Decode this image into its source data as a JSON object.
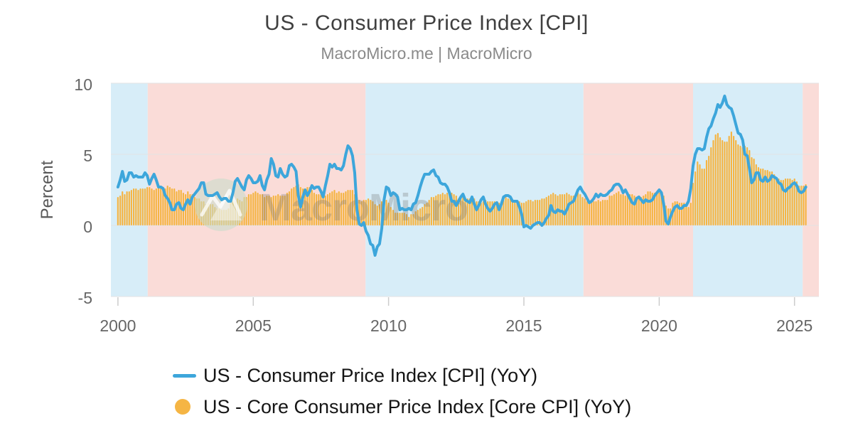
{
  "header": {
    "title": "US - Consumer Price Index [CPI]",
    "subtitle": "MacroMicro.me | MacroMicro"
  },
  "y_axis": {
    "label": "Percent",
    "ticks": [
      "10",
      "5",
      "0",
      "-5"
    ]
  },
  "x_axis": {
    "ticks": [
      "2000",
      "2005",
      "2010",
      "2015",
      "2020",
      "2025"
    ]
  },
  "watermark": {
    "text": "MacroMicro",
    "logo": "macromicro-mountain-logo"
  },
  "colors": {
    "line": "#3da6db",
    "bar": "#f5b544",
    "band_blue": "#d7edf8",
    "band_pink": "#fadcd8",
    "grid": "#e3e3e3",
    "tick": "#cccccc",
    "title": "#3f3f3f",
    "subtitle": "#8a8a8a",
    "axis_text": "#666666",
    "legend_text": "#151515",
    "watermark_gray": "#777777"
  },
  "legend": {
    "items": [
      {
        "label": "US - Consumer Price Index [CPI] (YoY)",
        "marker": "line",
        "color": "#3da6db"
      },
      {
        "label": "US - Core Consumer Price Index [Core CPI] (YoY)",
        "marker": "circle",
        "color": "#f5b544"
      }
    ]
  },
  "chart_data": {
    "type": "line+bar",
    "title": "US - Consumer Price Index [CPI]",
    "subtitle": "MacroMicro.me | MacroMicro",
    "ylabel": "Percent",
    "xlabel": "",
    "x_start": 2000.0,
    "frequency": "monthly",
    "xlim": [
      1999.74,
      2025.9
    ],
    "ylim": [
      -5,
      10
    ],
    "y_ticks": [
      10,
      5,
      0,
      -5
    ],
    "x_ticks": [
      2000,
      2005,
      2010,
      2015,
      2020,
      2025
    ],
    "grid": "horizontal",
    "legend_position": "bottom-left",
    "bands": [
      {
        "start": 1999.74,
        "end": 2001.1,
        "type": "blue"
      },
      {
        "start": 2001.1,
        "end": 2009.15,
        "type": "pink"
      },
      {
        "start": 2009.15,
        "end": 2017.2,
        "type": "blue"
      },
      {
        "start": 2017.2,
        "end": 2021.25,
        "type": "pink"
      },
      {
        "start": 2021.25,
        "end": 2025.3,
        "type": "blue"
      },
      {
        "start": 2025.3,
        "end": 2025.9,
        "type": "pink"
      }
    ],
    "series": [
      {
        "name": "US - Consumer Price Index [CPI] (YoY)",
        "type": "line",
        "color": "#3da6db",
        "values": [
          2.7,
          3.2,
          3.8,
          3.1,
          3.2,
          3.7,
          3.7,
          3.4,
          3.5,
          3.4,
          3.4,
          3.4,
          3.7,
          3.5,
          2.9,
          3.3,
          3.6,
          3.2,
          2.7,
          2.7,
          2.6,
          2.1,
          1.9,
          1.6,
          1.1,
          1.1,
          1.5,
          1.6,
          1.2,
          1.1,
          1.5,
          1.8,
          1.5,
          2.0,
          2.2,
          2.4,
          2.6,
          3.0,
          3.0,
          2.2,
          2.1,
          2.1,
          2.1,
          2.2,
          2.3,
          2.0,
          1.8,
          1.9,
          1.9,
          1.7,
          1.7,
          2.3,
          3.1,
          3.3,
          3.0,
          2.7,
          2.5,
          3.2,
          3.5,
          3.3,
          3.0,
          3.0,
          3.1,
          3.5,
          2.8,
          2.5,
          3.2,
          3.6,
          4.7,
          4.3,
          3.5,
          3.4,
          4.0,
          3.6,
          3.4,
          3.5,
          4.2,
          4.3,
          4.1,
          3.8,
          2.1,
          1.3,
          2.0,
          2.5,
          2.1,
          2.4,
          2.8,
          2.6,
          2.7,
          2.7,
          2.4,
          2.0,
          2.8,
          3.5,
          4.3,
          4.1,
          4.3,
          4.0,
          4.0,
          3.9,
          4.2,
          5.0,
          5.6,
          5.4,
          4.9,
          3.7,
          1.1,
          0.1,
          0.0,
          0.2,
          -0.4,
          -0.7,
          -1.3,
          -1.4,
          -2.1,
          -1.5,
          -1.3,
          -0.2,
          1.8,
          2.7,
          2.6,
          2.1,
          2.3,
          2.2,
          2.0,
          1.1,
          1.2,
          1.1,
          1.1,
          1.2,
          1.1,
          1.5,
          1.6,
          2.1,
          2.7,
          3.2,
          3.6,
          3.6,
          3.6,
          3.8,
          3.9,
          3.5,
          3.4,
          3.0,
          2.9,
          2.9,
          2.7,
          2.3,
          1.7,
          1.7,
          1.4,
          1.7,
          2.0,
          2.2,
          1.8,
          1.7,
          1.6,
          2.0,
          1.5,
          1.1,
          1.4,
          1.8,
          2.0,
          1.5,
          1.2,
          1.0,
          1.2,
          1.5,
          1.6,
          1.1,
          1.5,
          2.0,
          2.1,
          2.1,
          2.0,
          1.7,
          1.7,
          1.7,
          1.3,
          0.8,
          -0.1,
          0.0,
          -0.1,
          -0.2,
          0.0,
          0.1,
          0.2,
          0.2,
          0.0,
          0.2,
          0.5,
          0.7,
          1.4,
          1.0,
          0.9,
          1.1,
          1.0,
          1.0,
          0.8,
          1.1,
          1.5,
          1.6,
          1.7,
          2.1,
          2.5,
          2.7,
          2.4,
          2.2,
          1.9,
          1.6,
          1.7,
          1.9,
          2.2,
          2.0,
          2.2,
          2.1,
          2.1,
          2.2,
          2.4,
          2.5,
          2.8,
          2.9,
          2.9,
          2.7,
          2.3,
          2.5,
          2.2,
          1.9,
          1.6,
          1.5,
          1.9,
          2.0,
          1.8,
          1.6,
          1.8,
          1.7,
          1.7,
          1.8,
          2.1,
          2.3,
          2.5,
          2.3,
          1.5,
          0.3,
          0.1,
          0.6,
          1.0,
          1.3,
          1.4,
          1.2,
          1.2,
          1.4,
          1.4,
          1.7,
          2.6,
          4.2,
          5.0,
          5.4,
          5.4,
          5.3,
          5.4,
          6.2,
          6.8,
          7.0,
          7.5,
          7.9,
          8.5,
          8.3,
          8.6,
          9.1,
          8.5,
          8.3,
          8.2,
          7.7,
          7.1,
          6.5,
          6.4,
          6.0,
          5.0,
          4.9,
          4.0,
          3.0,
          3.2,
          3.7,
          3.7,
          3.2,
          3.1,
          3.4,
          3.1,
          3.2,
          3.5,
          3.4,
          3.3,
          3.0,
          2.9,
          2.5,
          2.4,
          2.6,
          2.7,
          2.9,
          3.0,
          2.8,
          2.4,
          2.3,
          2.4,
          2.7
        ]
      },
      {
        "name": "US - Core Consumer Price Index [Core CPI] (YoY)",
        "type": "bar",
        "color": "#f5b544",
        "values": [
          2.0,
          2.1,
          2.4,
          2.2,
          2.4,
          2.4,
          2.5,
          2.6,
          2.6,
          2.5,
          2.6,
          2.6,
          2.6,
          2.7,
          2.7,
          2.6,
          2.5,
          2.6,
          2.7,
          2.7,
          2.6,
          2.6,
          2.8,
          2.7,
          2.6,
          2.6,
          2.4,
          2.5,
          2.5,
          2.3,
          2.2,
          2.4,
          2.2,
          2.2,
          2.0,
          1.9,
          1.9,
          1.7,
          1.7,
          1.5,
          1.6,
          1.5,
          1.5,
          1.3,
          1.2,
          1.3,
          1.1,
          1.1,
          1.1,
          1.2,
          1.6,
          1.8,
          1.7,
          1.9,
          1.8,
          1.7,
          2.0,
          2.0,
          2.2,
          2.2,
          2.3,
          2.4,
          2.3,
          2.2,
          2.2,
          2.0,
          2.1,
          2.1,
          2.0,
          2.1,
          2.1,
          2.2,
          2.1,
          2.1,
          2.1,
          2.3,
          2.4,
          2.6,
          2.7,
          2.8,
          2.9,
          2.7,
          2.6,
          2.6,
          2.7,
          2.7,
          2.5,
          2.3,
          2.2,
          2.2,
          2.2,
          2.1,
          2.1,
          2.2,
          2.3,
          2.4,
          2.5,
          2.3,
          2.4,
          2.3,
          2.3,
          2.4,
          2.5,
          2.5,
          2.5,
          2.2,
          2.0,
          1.8,
          1.7,
          1.8,
          1.8,
          1.9,
          1.8,
          1.7,
          1.5,
          1.4,
          1.5,
          1.7,
          1.7,
          1.8,
          1.6,
          1.3,
          1.1,
          0.9,
          0.9,
          0.9,
          0.9,
          0.9,
          0.8,
          0.6,
          0.8,
          0.8,
          1.0,
          1.1,
          1.2,
          1.3,
          1.5,
          1.6,
          1.8,
          2.0,
          2.0,
          2.1,
          2.2,
          2.2,
          2.3,
          2.2,
          2.3,
          2.3,
          2.3,
          2.2,
          2.1,
          1.9,
          2.0,
          2.0,
          1.9,
          1.9,
          1.9,
          2.0,
          1.9,
          1.7,
          1.7,
          1.6,
          1.7,
          1.8,
          1.7,
          1.7,
          1.7,
          1.7,
          1.6,
          1.6,
          1.7,
          1.8,
          2.0,
          1.9,
          1.9,
          1.7,
          1.7,
          1.8,
          1.7,
          1.6,
          1.6,
          1.7,
          1.8,
          1.8,
          1.7,
          1.8,
          1.8,
          1.8,
          1.9,
          1.9,
          2.0,
          2.1,
          2.2,
          2.3,
          2.2,
          2.1,
          2.2,
          2.2,
          2.2,
          2.3,
          2.2,
          2.1,
          2.1,
          2.2,
          2.3,
          2.2,
          2.0,
          1.9,
          1.7,
          1.7,
          1.7,
          1.7,
          1.7,
          1.8,
          1.7,
          1.8,
          1.8,
          1.8,
          2.1,
          2.1,
          2.2,
          2.3,
          2.4,
          2.2,
          2.2,
          2.1,
          2.2,
          2.2,
          2.2,
          2.1,
          2.0,
          2.1,
          2.0,
          2.1,
          2.2,
          2.4,
          2.4,
          2.3,
          2.3,
          2.3,
          2.3,
          2.4,
          2.1,
          1.4,
          1.2,
          1.2,
          1.6,
          1.7,
          1.7,
          1.6,
          1.6,
          1.6,
          1.4,
          1.3,
          1.6,
          3.0,
          3.8,
          4.5,
          4.3,
          4.0,
          4.0,
          4.6,
          4.9,
          5.5,
          6.0,
          6.4,
          6.5,
          6.2,
          6.0,
          5.9,
          5.9,
          6.3,
          6.6,
          6.3,
          6.0,
          5.7,
          5.6,
          5.5,
          5.6,
          5.5,
          5.3,
          4.8,
          4.7,
          4.3,
          4.1,
          4.0,
          4.0,
          3.9,
          3.9,
          3.8,
          3.8,
          3.6,
          3.4,
          3.3,
          3.2,
          3.2,
          3.3,
          3.3,
          3.3,
          3.2,
          3.3,
          3.1,
          2.8,
          2.8,
          2.8,
          2.9
        ]
      }
    ]
  }
}
